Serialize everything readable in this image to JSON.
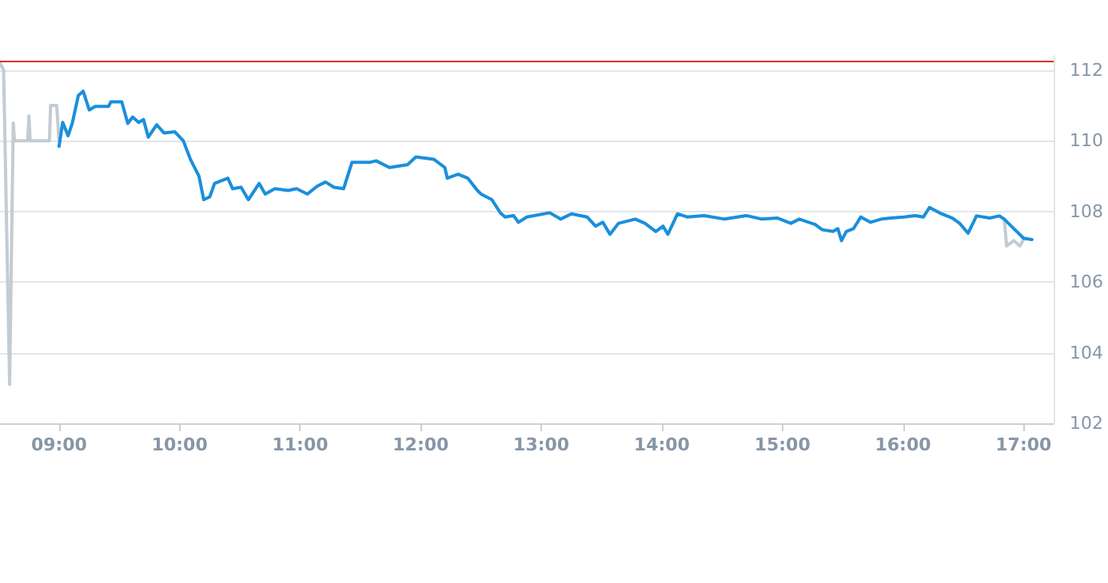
{
  "chart_data": {
    "type": "line",
    "xlim": [
      8.51,
      17.25
    ],
    "ylim": [
      102,
      112.4
    ],
    "xticks": [
      {
        "value": 9,
        "label": "09:00"
      },
      {
        "value": 10,
        "label": "10:00"
      },
      {
        "value": 11,
        "label": "11:00"
      },
      {
        "value": 12,
        "label": "12:00"
      },
      {
        "value": 13,
        "label": "13:00"
      },
      {
        "value": 14,
        "label": "14:00"
      },
      {
        "value": 15,
        "label": "15:00"
      },
      {
        "value": 16,
        "label": "16:00"
      },
      {
        "value": 17,
        "label": "17:00"
      }
    ],
    "yticks": [
      102,
      104,
      106,
      108,
      110,
      112
    ],
    "grid": "y",
    "marker": "none",
    "line_style": "solid",
    "ref_lines": [
      {
        "axis": "y",
        "value": 112.27,
        "color": "#d9342b"
      }
    ],
    "series": [
      {
        "color": "#c3cbd3",
        "x": [
          8.51,
          8.54,
          8.59,
          8.62,
          8.63,
          8.74,
          8.75,
          8.76,
          8.92,
          8.93,
          8.98,
          9.0
        ],
        "values": [
          112.2,
          112.0,
          103.1,
          110.5,
          110.0,
          110.0,
          110.7,
          110.0,
          110.0,
          111.0,
          111.0,
          110.0
        ]
      },
      {
        "color": "#c3cbd3",
        "x": [
          16.84,
          16.86,
          16.92,
          16.97,
          17.0
        ],
        "values": [
          107.78,
          107.02,
          107.17,
          107.02,
          107.2
        ]
      },
      {
        "color": "#1a8fdc",
        "x": [
          9.0,
          9.03,
          9.075,
          9.11,
          9.16,
          9.2,
          9.25,
          9.3,
          9.41,
          9.43,
          9.52,
          9.57,
          9.61,
          9.66,
          9.7,
          9.74,
          9.81,
          9.87,
          9.96,
          10.03,
          10.09,
          10.16,
          10.2,
          10.25,
          10.29,
          10.4,
          10.44,
          10.51,
          10.57,
          10.66,
          10.71,
          10.79,
          10.9,
          10.97,
          11.06,
          11.14,
          11.21,
          11.28,
          11.36,
          11.43,
          11.5,
          11.58,
          11.63,
          11.74,
          11.89,
          11.96,
          12.11,
          12.2,
          12.22,
          12.31,
          12.39,
          12.47,
          12.5,
          12.59,
          12.66,
          12.7,
          12.77,
          12.81,
          12.88,
          13.07,
          13.16,
          13.25,
          13.38,
          13.45,
          13.51,
          13.57,
          13.64,
          13.78,
          13.86,
          13.95,
          14.01,
          14.05,
          14.13,
          14.21,
          14.35,
          14.52,
          14.7,
          14.83,
          14.96,
          15.07,
          15.14,
          15.27,
          15.33,
          15.42,
          15.46,
          15.49,
          15.53,
          15.59,
          15.65,
          15.73,
          15.82,
          15.9,
          16.01,
          16.1,
          16.17,
          16.22,
          16.32,
          16.41,
          16.47,
          16.54,
          16.61,
          16.72,
          16.8,
          16.84,
          17.0,
          17.07
        ],
        "values": [
          109.84,
          110.52,
          110.14,
          110.5,
          111.28,
          111.4,
          110.87,
          110.97,
          110.97,
          111.1,
          111.1,
          110.49,
          110.67,
          110.52,
          110.6,
          110.1,
          110.45,
          110.22,
          110.25,
          110.0,
          109.47,
          109.0,
          108.33,
          108.41,
          108.79,
          108.94,
          108.64,
          108.68,
          108.33,
          108.79,
          108.49,
          108.64,
          108.59,
          108.64,
          108.49,
          108.71,
          108.83,
          108.68,
          108.64,
          109.39,
          109.39,
          109.39,
          109.43,
          109.24,
          109.32,
          109.54,
          109.47,
          109.24,
          108.94,
          109.05,
          108.94,
          108.59,
          108.49,
          108.33,
          107.96,
          107.84,
          107.88,
          107.69,
          107.84,
          107.96,
          107.78,
          107.93,
          107.84,
          107.58,
          107.69,
          107.35,
          107.66,
          107.78,
          107.66,
          107.43,
          107.58,
          107.35,
          107.93,
          107.84,
          107.88,
          107.78,
          107.88,
          107.78,
          107.81,
          107.66,
          107.78,
          107.63,
          107.48,
          107.43,
          107.51,
          107.17,
          107.43,
          107.51,
          107.84,
          107.69,
          107.78,
          107.81,
          107.84,
          107.88,
          107.84,
          108.11,
          107.93,
          107.81,
          107.66,
          107.38,
          107.87,
          107.81,
          107.87,
          107.78,
          107.24,
          107.2
        ]
      }
    ]
  }
}
